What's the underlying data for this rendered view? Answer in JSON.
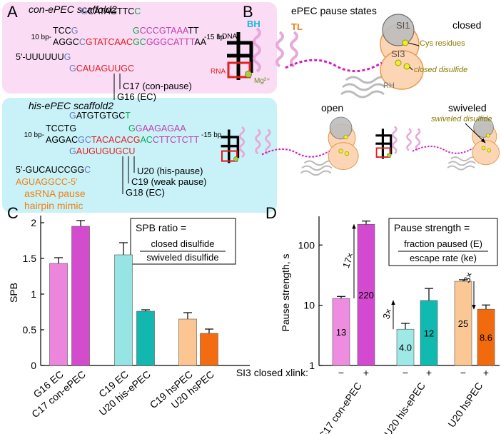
{
  "panel_a": {
    "label": "A",
    "con": {
      "title": "con-ePEC scaffold2",
      "left_end": "10 bp-",
      "right_end": "-15 bp",
      "rows": [
        [
          {
            "text": "G",
            "color": "#6a78c0"
          },
          {
            "text": "CATAGTTC",
            "color": "#000000"
          },
          {
            "text": "C",
            "color": "#10a850"
          }
        ],
        [
          {
            "text": "TCC",
            "color": "#000000"
          },
          {
            "text": "G",
            "color": "#6a78c0"
          }
        ],
        [
          {
            "text": "G",
            "color": "#10a850"
          },
          {
            "text": "CCCGTAAA",
            "color": "#c040b0"
          },
          {
            "text": "TT",
            "color": "#000000"
          }
        ],
        [
          {
            "text": "AGGC",
            "color": "#000000"
          },
          {
            "text": "C",
            "color": "#6a78c0"
          },
          {
            "text": "GTATCAAC",
            "color": "#e02020"
          },
          {
            "text": "GC",
            "color": "#10a850"
          },
          {
            "text": "GGGCATTT",
            "color": "#c040b0"
          },
          {
            "text": "AA",
            "color": "#000000"
          }
        ],
        [
          {
            "text": "5'-UUUUUU",
            "color": "#000000"
          },
          {
            "text": "G",
            "color": "#6a78c0"
          }
        ],
        [
          {
            "text": "G",
            "color": "#6a78c0"
          },
          {
            "text": "CAUAGUUGC",
            "color": "#e02020"
          }
        ]
      ],
      "annotations": [
        "C17 (con-pause)",
        "G16 (EC)"
      ]
    },
    "his": {
      "title": "his-ePEC scaffold2",
      "left_end": "10 bp-",
      "right_end": "-15 bp",
      "rows": [
        [
          {
            "text": "G",
            "color": "#6a78c0"
          },
          {
            "text": "ATGTGTGC",
            "color": "#000000"
          },
          {
            "text": "T",
            "color": "#10a850"
          }
        ],
        [
          {
            "text": "TCCTG",
            "color": "#000000"
          }
        ],
        [
          {
            "text": "G",
            "color": "#10a850"
          },
          {
            "text": "GAAGAGAA",
            "color": "#c040b0"
          }
        ],
        [
          {
            "text": "AGGAC",
            "color": "#000000"
          },
          {
            "text": "GC",
            "color": "#6a78c0"
          },
          {
            "text": "TACACACG",
            "color": "#e02020"
          },
          {
            "text": "AC",
            "color": "#10a850"
          },
          {
            "text": "CTTCTCTT",
            "color": "#c040b0"
          }
        ],
        [
          {
            "text": "G",
            "color": "#6a78c0"
          },
          {
            "text": "AUGUGUGCU",
            "color": "#e02020"
          }
        ],
        [
          {
            "text": "5'-GUCAUCCGG",
            "color": "#000000"
          },
          {
            "text": "C",
            "color": "#6a78c0"
          }
        ],
        [
          {
            "text": "AGUAGGCC-5'",
            "color": "#f08010"
          }
        ]
      ],
      "annotations": [
        "U20 (his-pause)",
        "C19 (weak pause)",
        "G18 (EC)"
      ],
      "hairpin": [
        "asRNA pause",
        "hairpin mimic"
      ]
    }
  },
  "panel_b": {
    "label": "B",
    "title": "ePEC pause states",
    "states": [
      "closed",
      "open",
      "swiveled"
    ],
    "labels": {
      "bh": "BH",
      "tl": "TL",
      "si1": "SI1",
      "si3": "SI3",
      "cys": "Cys residues",
      "tdna": "t-DNA",
      "rna": "RNA",
      "mg": "Mg²⁺",
      "closed_disulfide": "closed disulfide",
      "rh": "RH",
      "swiveled_disulfide": "swiveled disulfide"
    }
  },
  "chart_data": [
    {
      "type": "bar",
      "label": "C",
      "ylabel": "SPB",
      "categories": [
        "G16 EC",
        "C17 con-ePEC",
        "C19 EC",
        "U20 his-ePEC",
        "C19 hsPEC",
        "U20 hsPEC"
      ],
      "values": [
        1.43,
        1.95,
        1.55,
        0.76,
        0.65,
        0.45
      ],
      "errors": [
        0.08,
        0.08,
        0.17,
        0.02,
        0.09,
        0.06
      ],
      "colors": [
        "#ec86dc",
        "#d24ccd",
        "#96e4e4",
        "#12b8b0",
        "#fbc692",
        "#f36c12"
      ],
      "ylim": [
        0,
        2.1
      ],
      "yticks": [
        0,
        0.5,
        1,
        1.5,
        2
      ],
      "formula": [
        "SPB ratio =",
        "closed disulfide",
        "swiveled disulfide"
      ]
    },
    {
      "type": "bar",
      "label": "D",
      "log_scale": true,
      "ylabel": "Pause strength, s",
      "xlabel": "SI3 closed xlink:",
      "categories": [
        "−",
        "+",
        "−",
        "+",
        "−",
        "+"
      ],
      "group_labels": [
        "C17 con-ePEC",
        "U20 his-ePEC",
        "U20 hsPEC"
      ],
      "values": [
        13,
        220,
        4.0,
        12,
        25,
        8.6
      ],
      "value_labels": [
        "13",
        "220",
        "4.0",
        "12",
        "25",
        "8.6"
      ],
      "errors": [
        1,
        30,
        1,
        7,
        1.5,
        1.5
      ],
      "colors": [
        "#ee8ce0",
        "#d34ad0",
        "#9ee8e6",
        "#10bab0",
        "#fbc795",
        "#f26a0e"
      ],
      "ylim": [
        1,
        300
      ],
      "yticks": [
        1,
        10,
        100
      ],
      "annotations": [
        "17×",
        "3×",
        "3×"
      ],
      "formula": [
        "Pause strength =",
        "fraction paused (E)",
        "escape rate (ke)"
      ]
    }
  ]
}
